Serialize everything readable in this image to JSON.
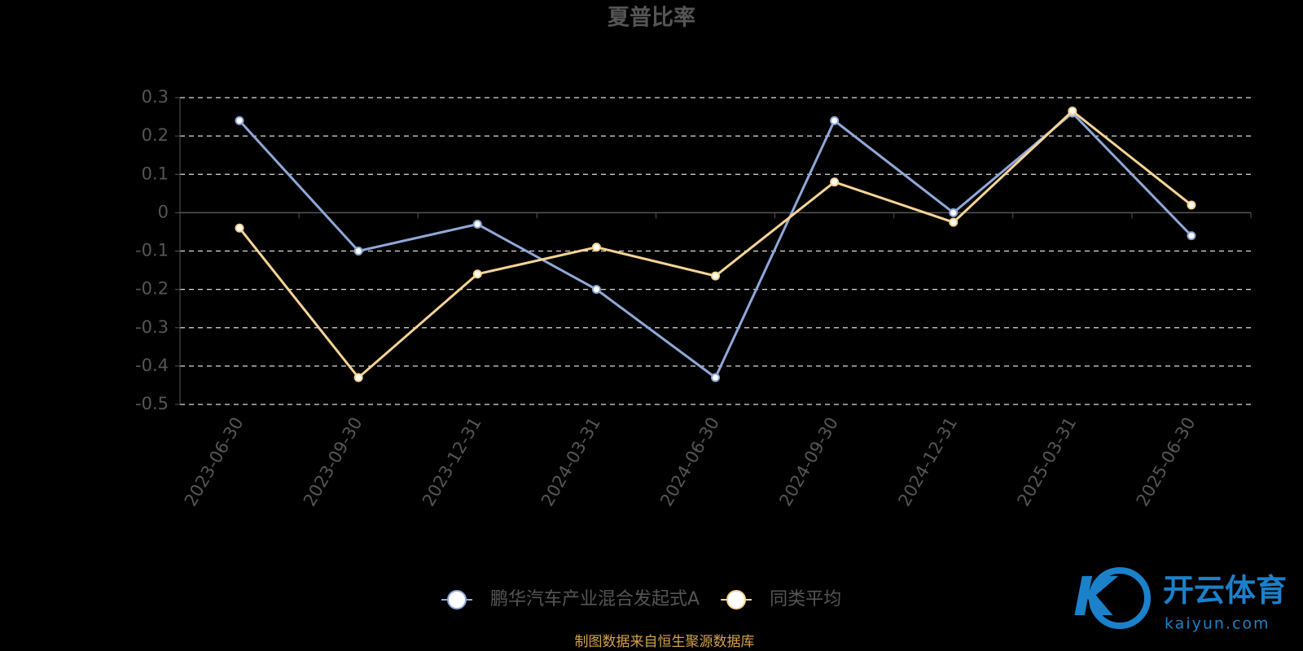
{
  "chart_data": {
    "type": "line",
    "title": "夏普比率",
    "categories": [
      "2023-06-30",
      "2023-09-30",
      "2023-12-31",
      "2024-03-31",
      "2024-06-30",
      "2024-09-30",
      "2024-12-31",
      "2025-03-31",
      "2025-06-30"
    ],
    "series": [
      {
        "name": "鹏华汽车产业混合发起式A",
        "color": "#8fa8d8",
        "values": [
          0.24,
          -0.1,
          -0.03,
          -0.2,
          -0.43,
          0.24,
          0.0,
          0.26,
          -0.06
        ]
      },
      {
        "name": "同类平均",
        "color": "#f7d495",
        "values": [
          -0.04,
          -0.43,
          -0.16,
          -0.09,
          -0.165,
          0.08,
          -0.025,
          0.265,
          0.02
        ]
      }
    ],
    "ylim": [
      -0.5,
      0.3
    ],
    "yticks": [
      -0.5,
      -0.4,
      -0.3,
      -0.2,
      -0.1,
      0,
      0.1,
      0.2,
      0.3
    ],
    "grid": true,
    "legend": "bottom",
    "source": "制图数据来自恒生聚源数据库",
    "watermark": {
      "brand": "开云体育",
      "site": "kaiyun.com"
    }
  }
}
